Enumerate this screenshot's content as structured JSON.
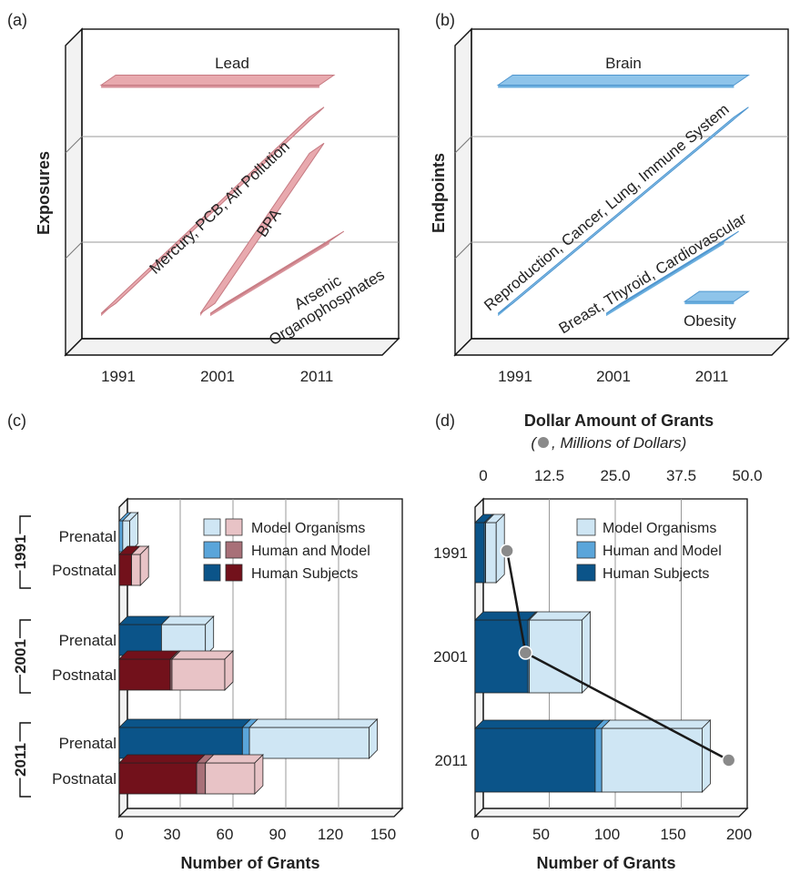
{
  "colors": {
    "pink": "#e8a9ae",
    "pink_edge": "#c67a82",
    "pink_dark": "#d79199",
    "blue": "#8ec4ea",
    "blue_edge": "#4f96cf",
    "blue_dark": "#6aaede",
    "model_organisms": "#cfe6f4",
    "human_and_model": "#5aa5da",
    "human_subjects": "#0b5489",
    "post_model": "#e8c3c6",
    "post_human_model": "#a87078",
    "post_human_subjects": "#72111b",
    "grid": "#999999",
    "dot": "#8a8a8a",
    "line": "#1a1a1a"
  },
  "chart_data": [
    {
      "panel_label": "(a)",
      "type": "timeline",
      "ylabel": "Exposures",
      "xticks": [
        "1991",
        "2001",
        "2011"
      ],
      "bands": [
        {
          "label": "Lead",
          "start": 1990,
          "end": 2012,
          "level_start": 3.0,
          "level_end": 3.0
        },
        {
          "label": "Mercury, PCB, Air Pollution",
          "start": 1990,
          "end": 2011,
          "level_start": 0.15,
          "level_end": 2.6
        },
        {
          "label": "BPA",
          "start": 2000,
          "end": 2011,
          "level_start": 0.15,
          "level_end": 2.15
        },
        {
          "label": "Arsenic\nOrganophosphates",
          "start": 2001,
          "end": 2013,
          "level_start": 0.15,
          "level_end": 1.05
        }
      ]
    },
    {
      "panel_label": "(b)",
      "type": "timeline",
      "ylabel": "Endpoints",
      "xticks": [
        "1991",
        "2001",
        "2011"
      ],
      "bands": [
        {
          "label": "Brain",
          "start": 1990,
          "end": 2014,
          "level_start": 3.0,
          "level_end": 3.0
        },
        {
          "label": "Reproduction, Cancer, Lung, Immune System",
          "start": 1990,
          "end": 2014,
          "level_start": 0.15,
          "level_end": 2.6
        },
        {
          "label": "Breast, Thyroid, Cardiovascular",
          "start": 2001,
          "end": 2013,
          "level_start": 0.15,
          "level_end": 1.05
        },
        {
          "label": "Obesity",
          "start": 2009,
          "end": 2014,
          "level_start": 0.3,
          "level_end": 0.3
        }
      ]
    },
    {
      "panel_label": "(c)",
      "type": "bar",
      "orientation": "horizontal",
      "stacked": true,
      "xlabel": "Number of Grants",
      "xlim": [
        0,
        150
      ],
      "xticks": [
        "0",
        "30",
        "60",
        "90",
        "120",
        "150"
      ],
      "groups": [
        "1991",
        "2001",
        "2011"
      ],
      "categories": [
        "Prenatal",
        "Postnatal"
      ],
      "legend": [
        "Model Organisms",
        "Human and Model",
        "Human Subjects"
      ],
      "series": [
        {
          "name": "Human Subjects",
          "values": {
            "1991": [
              0,
              7
            ],
            "2001": [
              24,
              29
            ],
            "2011": [
              70,
              44
            ]
          }
        },
        {
          "name": "Human and Model",
          "values": {
            "1991": [
              2,
              0
            ],
            "2001": [
              0,
              1
            ],
            "2011": [
              4,
              5
            ]
          }
        },
        {
          "name": "Model Organisms",
          "values": {
            "1991": [
              4,
              5
            ],
            "2001": [
              25,
              30
            ],
            "2011": [
              68,
              28
            ]
          }
        }
      ]
    },
    {
      "panel_label": "(d)",
      "type": "bar",
      "orientation": "horizontal",
      "stacked": true,
      "title": "Dollar Amount of Grants",
      "subtitle_prefix": "(",
      "subtitle": ", Millions of Dollars)",
      "xlabel": "Number of Grants",
      "xlim": [
        0,
        200
      ],
      "xticks": [
        "0",
        "50",
        "100",
        "150",
        "200"
      ],
      "top_axis_ticks": [
        "0",
        "12.5",
        "25.0",
        "37.5",
        "50.0"
      ],
      "top_axis_lim": [
        0,
        50
      ],
      "categories": [
        "1991",
        "2001",
        "2011"
      ],
      "legend": [
        "Model Organisms",
        "Human and Model",
        "Human Subjects"
      ],
      "series": [
        {
          "name": "Human Subjects",
          "values": [
            7,
            40,
            91
          ]
        },
        {
          "name": "Human and Model",
          "values": [
            1,
            1,
            5
          ]
        },
        {
          "name": "Model Organisms",
          "values": [
            8,
            40,
            76
          ]
        }
      ],
      "dollars_millions": [
        4.5,
        8,
        46.5
      ]
    }
  ]
}
